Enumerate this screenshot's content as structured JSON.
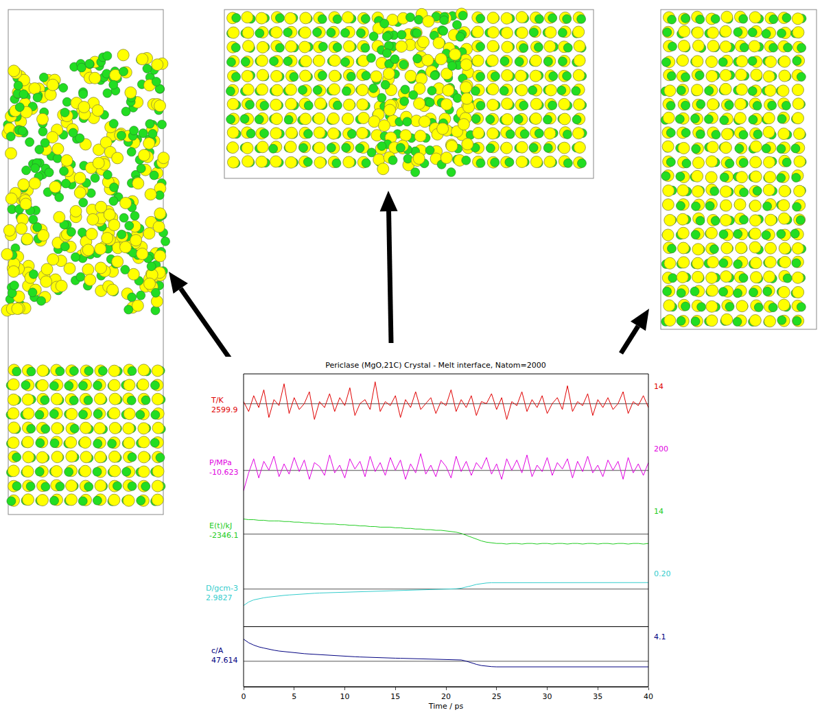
{
  "chart_data": {
    "type": "line",
    "title": "Periclase (MgO,21C) Crystal - Melt interface, Natom=2000",
    "x_label": "Time / ps",
    "xlim": [
      0,
      40
    ],
    "xticks": [
      0,
      5,
      10,
      15,
      20,
      25,
      30,
      35,
      40
    ],
    "grid": false,
    "tick_labels": "x",
    "x": [
      0,
      0.5,
      1,
      1.5,
      2,
      2.5,
      3,
      3.5,
      4,
      4.5,
      5,
      5.5,
      6,
      6.5,
      7,
      7.5,
      8,
      8.5,
      9,
      9.5,
      10,
      10.5,
      11,
      11.5,
      12,
      12.5,
      13,
      13.5,
      14,
      14.5,
      15,
      15.5,
      16,
      16.5,
      17,
      17.5,
      18,
      18.5,
      19,
      19.5,
      20,
      20.5,
      21,
      21.5,
      22,
      22.5,
      23,
      23.5,
      24,
      24.5,
      25,
      25.5,
      26,
      26.5,
      27,
      27.5,
      28,
      28.5,
      29,
      29.5,
      30,
      30.5,
      31,
      31.5,
      32,
      32.5,
      33,
      33.5,
      34,
      34.5,
      35,
      35.5,
      36,
      36.5,
      37,
      37.5,
      38,
      38.5,
      39,
      39.5,
      40
    ],
    "series": [
      {
        "name": "T/K",
        "color": "#e00000",
        "reference": 2599.9,
        "scale": 14,
        "ylim": [
          2585,
          2615
        ],
        "values": [
          2601,
          2596,
          2604,
          2598,
          2607,
          2593,
          2602,
          2599,
          2610,
          2595,
          2603,
          2597,
          2600,
          2606,
          2592,
          2601,
          2598,
          2605,
          2596,
          2603,
          2599,
          2608,
          2594,
          2600,
          2602,
          2597,
          2611,
          2596,
          2601,
          2599,
          2604,
          2593,
          2602,
          2598,
          2606,
          2597,
          2600,
          2603,
          2595,
          2601,
          2599,
          2607,
          2596,
          2602,
          2598,
          2604,
          2594,
          2601,
          2600,
          2605,
          2597,
          2603,
          2592,
          2601,
          2599,
          2606,
          2596,
          2602,
          2598,
          2604,
          2595,
          2600,
          2603,
          2597,
          2609,
          2596,
          2601,
          2599,
          2605,
          2594,
          2602,
          2598,
          2603,
          2597,
          2600,
          2606,
          2595,
          2601,
          2599,
          2604,
          2598
        ]
      },
      {
        "name": "P/MPa",
        "color": "#e000e0",
        "reference": -10.623,
        "scale": 200,
        "ylim": [
          -110,
          110
        ],
        "values": [
          -90,
          -20,
          35,
          -40,
          25,
          -10,
          45,
          -35,
          15,
          -25,
          40,
          -15,
          30,
          -45,
          20,
          5,
          -30,
          50,
          -20,
          10,
          -40,
          35,
          -5,
          25,
          -35,
          45,
          -15,
          20,
          -30,
          40,
          -10,
          30,
          -45,
          15,
          -20,
          55,
          -25,
          10,
          -35,
          30,
          5,
          -40,
          45,
          -15,
          25,
          -30,
          20,
          -5,
          40,
          -25,
          15,
          -45,
          35,
          -10,
          30,
          -20,
          50,
          -35,
          10,
          -15,
          40,
          -30,
          20,
          -5,
          35,
          -40,
          25,
          -15,
          45,
          -20,
          10,
          -35,
          30,
          -10,
          25,
          -45,
          40,
          -20,
          15,
          -30,
          20
        ]
      },
      {
        "name": "E(t)/kJ",
        "color": "#22cc22",
        "reference": -2346.1,
        "scale": 14,
        "ylim": [
          -2350,
          -2341
        ],
        "values": [
          -2343.7,
          -2343.8,
          -2343.8,
          -2343.9,
          -2343.9,
          -2344.0,
          -2344.0,
          -2344.0,
          -2344.1,
          -2344.1,
          -2344.2,
          -2344.2,
          -2344.3,
          -2344.3,
          -2344.4,
          -2344.4,
          -2344.5,
          -2344.5,
          -2344.5,
          -2344.6,
          -2344.6,
          -2344.7,
          -2344.7,
          -2344.8,
          -2344.8,
          -2344.9,
          -2344.9,
          -2345.0,
          -2345.0,
          -2345.0,
          -2345.1,
          -2345.1,
          -2345.2,
          -2345.2,
          -2345.3,
          -2345.3,
          -2345.4,
          -2345.4,
          -2345.5,
          -2345.5,
          -2345.6,
          -2345.7,
          -2345.8,
          -2346.0,
          -2346.3,
          -2346.6,
          -2346.9,
          -2347.2,
          -2347.4,
          -2347.5,
          -2347.6,
          -2347.6,
          -2347.7,
          -2347.6,
          -2347.6,
          -2347.7,
          -2347.6,
          -2347.6,
          -2347.7,
          -2347.6,
          -2347.6,
          -2347.7,
          -2347.6,
          -2347.6,
          -2347.7,
          -2347.6,
          -2347.6,
          -2347.7,
          -2347.6,
          -2347.6,
          -2347.7,
          -2347.6,
          -2347.6,
          -2347.7,
          -2347.6,
          -2347.6,
          -2347.7,
          -2347.6,
          -2347.6,
          -2347.7,
          -2347.6
        ]
      },
      {
        "name": "D/gcm-3",
        "color": "#33cccc",
        "reference": 2.9827,
        "scale": {
          "value": 0.2,
          "label": "0.20"
        },
        "ylim": [
          2.96,
          3.0
        ],
        "values": [
          2.971,
          2.9735,
          2.975,
          2.9758,
          2.9765,
          2.977,
          2.9775,
          2.9778,
          2.9782,
          2.9785,
          2.9788,
          2.979,
          2.9793,
          2.9795,
          2.9797,
          2.9799,
          2.98,
          2.9802,
          2.9803,
          2.9805,
          2.9806,
          2.9807,
          2.9809,
          2.981,
          2.9811,
          2.9812,
          2.9813,
          2.9814,
          2.9815,
          2.9816,
          2.9817,
          2.9818,
          2.9819,
          2.982,
          2.9821,
          2.9822,
          2.9823,
          2.9824,
          2.9824,
          2.9825,
          2.9826,
          2.9827,
          2.9829,
          2.9833,
          2.984,
          2.985,
          2.986,
          2.9866,
          2.987,
          2.9872,
          2.9872,
          2.9873,
          2.9872,
          2.9873,
          2.9873,
          2.9872,
          2.9873,
          2.9872,
          2.9873,
          2.9873,
          2.9872,
          2.9873,
          2.9872,
          2.9873,
          2.9873,
          2.9872,
          2.9873,
          2.9872,
          2.9873,
          2.9873,
          2.9872,
          2.9873,
          2.9872,
          2.9873,
          2.9873,
          2.9872,
          2.9873,
          2.9872,
          2.9873,
          2.9873,
          2.9873
        ]
      },
      {
        "name": "c/A",
        "color": "#000080",
        "reference": 47.614,
        "scale": 4.1,
        "ylim": [
          47.4,
          47.9
        ],
        "values": [
          47.8,
          47.77,
          47.75,
          47.735,
          47.725,
          47.715,
          47.707,
          47.7,
          47.695,
          47.69,
          47.686,
          47.682,
          47.678,
          47.675,
          47.672,
          47.669,
          47.666,
          47.663,
          47.66,
          47.658,
          47.656,
          47.654,
          47.652,
          47.65,
          47.648,
          47.647,
          47.645,
          47.644,
          47.642,
          47.641,
          47.64,
          47.639,
          47.638,
          47.637,
          47.636,
          47.635,
          47.634,
          47.633,
          47.633,
          47.632,
          47.631,
          47.63,
          47.629,
          47.625,
          47.615,
          47.6,
          47.588,
          47.578,
          47.572,
          47.569,
          47.567,
          47.567,
          47.566,
          47.567,
          47.567,
          47.566,
          47.567,
          47.567,
          47.566,
          47.567,
          47.567,
          47.567,
          47.566,
          47.567,
          47.567,
          47.566,
          47.567,
          47.567,
          47.566,
          47.567,
          47.567,
          47.567,
          47.566,
          47.567,
          47.567,
          47.566,
          47.567,
          47.567,
          47.566,
          47.567,
          47.567
        ]
      }
    ]
  }
}
